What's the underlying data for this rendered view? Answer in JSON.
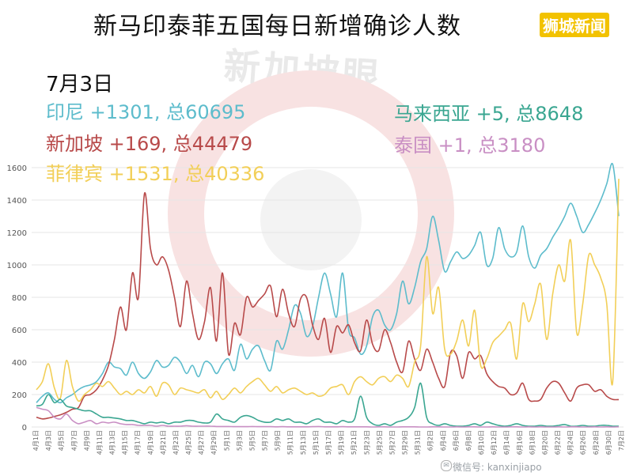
{
  "header": {
    "title": "新马印泰菲五国每日新增确诊人数",
    "brand": "狮城新闻",
    "date": "7月3日",
    "watermark": "新加坡眼"
  },
  "legend": {
    "indonesia": "印尼 +1301, 总60695",
    "malaysia": "马来西亚 +5, 总8648",
    "singapore": "新加坡 +169, 总44479",
    "thailand": "泰国 +1, 总3180",
    "philippines": "菲律宾 +1531, 总40336"
  },
  "credit": "微信号: kanxinjiapo",
  "colors": {
    "indonesia": "#5dbccc",
    "malaysia": "#3aa691",
    "singapore": "#b84a4a",
    "thailand": "#c98fc4",
    "philippines": "#f2cf58"
  },
  "chart_data": {
    "type": "line",
    "ylim": [
      0,
      1600
    ],
    "yticks": [
      0,
      200,
      400,
      600,
      800,
      1000,
      1200,
      1400,
      1600
    ],
    "xtick_labels": [
      "4月1日",
      "4月3日",
      "4月5日",
      "4月7日",
      "4月9日",
      "4月11日",
      "4月13日",
      "4月15日",
      "4月17日",
      "4月19日",
      "4月21日",
      "4月23日",
      "4月25日",
      "4月27日",
      "4月29日",
      "5月1日",
      "5月3日",
      "5月5日",
      "5月7日",
      "5月9日",
      "5月11日",
      "5月13日",
      "5月15日",
      "5月17日",
      "5月19日",
      "5月21日",
      "5月23日",
      "5月25日",
      "5月27日",
      "5月29日",
      "5月31日",
      "6月2日",
      "6月4日",
      "6月6日",
      "6月8日",
      "6月10日",
      "6月12日",
      "6月14日",
      "6月16日",
      "6月18日",
      "6月20日",
      "6月22日",
      "6月24日",
      "6月26日",
      "6月28日",
      "6月30日",
      "7月2日"
    ],
    "series": [
      {
        "name": "印尼",
        "key": "indonesia",
        "values": [
          150,
          190,
          210,
          170,
          150,
          180,
          200,
          230,
          250,
          260,
          280,
          330,
          400,
          370,
          360,
          320,
          400,
          330,
          300,
          340,
          410,
          370,
          380,
          430,
          400,
          330,
          380,
          310,
          400,
          390,
          330,
          390,
          420,
          350,
          510,
          420,
          480,
          500,
          410,
          350,
          530,
          480,
          600,
          750,
          700,
          560,
          620,
          800,
          950,
          820,
          680,
          950,
          600,
          550,
          450,
          500,
          680,
          720,
          630,
          600,
          700,
          900,
          760,
          860,
          1020,
          1100,
          1300,
          1150,
          960,
          1020,
          1080,
          1040,
          1060,
          1120,
          1200,
          1000,
          1040,
          1230,
          1100,
          1050,
          1080,
          1240,
          1050,
          980,
          1060,
          1100,
          1170,
          1230,
          1300,
          1380,
          1300,
          1200,
          1250,
          1320,
          1400,
          1500,
          1620,
          1301
        ]
      },
      {
        "name": "新加坡",
        "key": "singapore",
        "values": [
          60,
          50,
          55,
          65,
          75,
          90,
          110,
          120,
          190,
          200,
          230,
          290,
          380,
          540,
          740,
          600,
          950,
          800,
          1440,
          1100,
          1000,
          1050,
          970,
          800,
          620,
          900,
          700,
          540,
          650,
          860,
          530,
          950,
          450,
          640,
          570,
          800,
          740,
          780,
          820,
          870,
          680,
          850,
          700,
          620,
          790,
          800,
          630,
          540,
          670,
          460,
          620,
          580,
          630,
          520,
          470,
          660,
          510,
          470,
          600,
          520,
          400,
          340,
          530,
          420,
          350,
          480,
          400,
          300,
          250,
          460,
          440,
          300,
          460,
          420,
          440,
          330,
          280,
          250,
          240,
          200,
          210,
          270,
          170,
          160,
          170,
          240,
          280,
          270,
          210,
          160,
          240,
          260,
          260,
          220,
          230,
          190,
          170,
          169
        ]
      },
      {
        "name": "菲律宾",
        "key": "philippines",
        "values": [
          230,
          280,
          390,
          240,
          180,
          410,
          250,
          160,
          200,
          230,
          270,
          250,
          280,
          240,
          200,
          220,
          200,
          230,
          210,
          250,
          190,
          270,
          260,
          200,
          240,
          230,
          220,
          210,
          230,
          180,
          220,
          170,
          200,
          240,
          210,
          250,
          280,
          300,
          260,
          220,
          250,
          210,
          230,
          240,
          220,
          200,
          210,
          190,
          200,
          240,
          250,
          260,
          200,
          280,
          310,
          280,
          260,
          300,
          310,
          280,
          320,
          300,
          250,
          400,
          500,
          1050,
          700,
          860,
          480,
          450,
          530,
          660,
          500,
          720,
          380,
          420,
          520,
          560,
          600,
          640,
          420,
          760,
          650,
          760,
          880,
          540,
          820,
          1000,
          900,
          1150,
          580,
          760,
          1060,
          1000,
          920,
          760,
          280,
          1531
        ]
      },
      {
        "name": "马来西亚",
        "key": "malaysia",
        "values": [
          130,
          140,
          200,
          150,
          170,
          130,
          120,
          110,
          100,
          100,
          80,
          60,
          60,
          55,
          50,
          40,
          40,
          30,
          20,
          30,
          25,
          30,
          20,
          30,
          30,
          40,
          40,
          30,
          25,
          30,
          80,
          50,
          40,
          30,
          60,
          70,
          60,
          40,
          30,
          30,
          50,
          40,
          50,
          30,
          30,
          20,
          40,
          50,
          30,
          30,
          20,
          40,
          30,
          50,
          190,
          60,
          20,
          10,
          20,
          10,
          30,
          40,
          60,
          120,
          270,
          60,
          20,
          10,
          20,
          10,
          5,
          5,
          10,
          20,
          10,
          30,
          20,
          10,
          5,
          10,
          20,
          10,
          5,
          5,
          10,
          5,
          5,
          10,
          15,
          5,
          5,
          10,
          5,
          5,
          10,
          10,
          5,
          5
        ]
      },
      {
        "name": "泰国",
        "key": "thailand",
        "values": [
          120,
          110,
          100,
          60,
          50,
          80,
          40,
          20,
          30,
          40,
          20,
          30,
          25,
          30,
          20,
          15,
          15,
          10,
          10,
          10,
          5,
          10,
          5,
          5,
          5,
          8,
          5,
          5,
          5,
          5,
          3,
          3,
          3,
          2,
          2,
          2,
          3,
          2,
          2,
          2,
          1,
          2,
          1,
          1,
          1,
          1,
          2,
          3,
          1,
          1,
          1,
          2,
          1,
          1,
          1,
          1,
          0,
          1,
          1,
          0,
          0,
          1,
          1,
          1,
          0,
          0,
          1,
          1,
          0,
          0,
          1,
          0,
          1,
          1,
          0,
          0,
          1,
          0,
          0,
          1,
          1,
          0,
          1,
          0,
          1,
          0,
          0,
          1,
          0,
          1,
          1,
          0,
          0,
          1,
          0,
          1,
          0,
          1
        ]
      }
    ]
  }
}
